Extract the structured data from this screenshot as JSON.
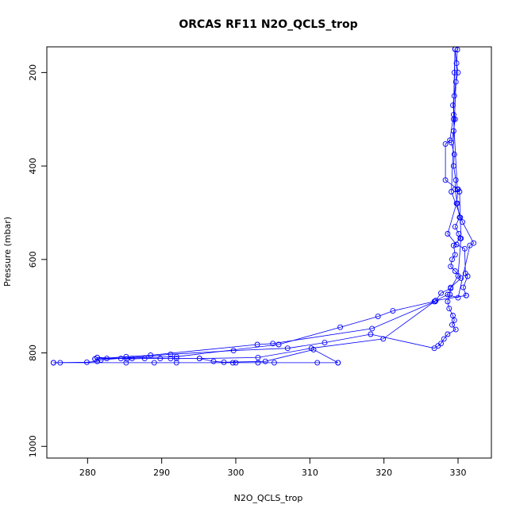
{
  "chart_data": {
    "type": "line",
    "title": "ORCAS RF11 N2O_QCLS_trop",
    "xlabel": "N2O_QCLS_trop",
    "ylabel": "Pressure (mbar)",
    "xlim": [
      274.5,
      334.5
    ],
    "ylim": [
      1025,
      145
    ],
    "y_reversed": true,
    "grid": false,
    "x_ticks": [
      280,
      290,
      300,
      310,
      320,
      330
    ],
    "x_tick_labels": [
      "280",
      "290",
      "300",
      "310",
      "320",
      "330"
    ],
    "y_ticks": [
      200,
      400,
      600,
      800,
      1000
    ],
    "y_tick_labels": [
      "200",
      "400",
      "600",
      "800",
      "1000"
    ],
    "series_color": "#0000ff",
    "series": [
      {
        "x": [
          329.6,
          329.8,
          330.0,
          329.7,
          329.5,
          329.3,
          329.6,
          329.4,
          329.1,
          329.5,
          329.4,
          329.7,
          329.6,
          329.9,
          330.2,
          329.6,
          330.1,
          330.3,
          329.4,
          329.6,
          329.2,
          329.0,
          329.6,
          330.4,
          329.0,
          328.9,
          328.6,
          328.8,
          329.3,
          329.5,
          329.2,
          329.7,
          328.6,
          328.1,
          327.7,
          327.3,
          326.8,
          318.2,
          312.0,
          307.0,
          299.7,
          291.2,
          281.8,
          281.3,
          279.9,
          275.4
        ],
        "y": [
          150,
          180,
          200,
          220,
          250,
          270,
          300,
          325,
          350,
          375,
          400,
          430,
          450,
          480,
          510,
          530,
          545,
          555,
          570,
          590,
          600,
          615,
          625,
          640,
          660,
          675,
          690,
          705,
          720,
          730,
          740,
          750,
          760,
          770,
          780,
          785,
          790,
          760,
          778,
          790,
          795,
          803,
          815,
          818,
          820,
          821
        ]
      },
      {
        "x": [
          275.4,
          276.3,
          285.2,
          289.0,
          292.0,
          299.6,
          300.0,
          303.0,
          305.2,
          311.0,
          313.8
        ],
        "y": [
          821,
          821,
          821,
          821,
          821,
          821,
          821,
          821,
          821,
          821,
          821
        ]
      },
      {
        "x": [
          313.8,
          310.5,
          304.0,
          298.4,
          297.0,
          295.1,
          291.2,
          286.0,
          281.3
        ],
        "y": [
          821,
          793,
          818,
          820,
          818,
          812,
          812,
          812,
          810
        ]
      },
      {
        "x": [
          281.3,
          282.6,
          284.5,
          285.3,
          287.7,
          289.8,
          292.0,
          295.1,
          303.0,
          310.2,
          319.9,
          327.0,
          331.1
        ],
        "y": [
          810,
          812,
          812,
          813,
          812,
          812,
          812,
          812,
          810,
          790,
          770,
          688,
          677
        ]
      },
      {
        "x": [
          331.1,
          330.7,
          331.3,
          331.0,
          330.9,
          329.8,
          328.6,
          329.8,
          330.0,
          328.3,
          328.3,
          328.9,
          329.4,
          329.6
        ],
        "y": [
          677,
          660,
          636,
          630,
          577,
          568,
          545,
          480,
          450,
          430,
          353,
          345,
          290,
          150
        ]
      },
      {
        "x": [
          329.6,
          329.5,
          329.4,
          329.9,
          330.2,
          330.3,
          330.4,
          330.0,
          329.0,
          327.7,
          326.9,
          318.4,
          305.0,
          302.9,
          288.5,
          285.2,
          281.0
        ],
        "y": [
          150,
          200,
          300,
          450,
          455,
          510,
          555,
          635,
          662,
          672,
          690,
          748,
          780,
          782,
          805,
          808,
          813
        ]
      },
      {
        "x": [
          281.0,
          292.0,
          305.8,
          314.1,
          319.2,
          321.2,
          326.8,
          328.6,
          330.0,
          331.6,
          332.1,
          330.6,
          329.1,
          329.9
        ],
        "y": [
          813,
          808,
          782,
          745,
          722,
          710,
          690,
          675,
          682,
          570,
          565,
          520,
          455,
          151
        ]
      }
    ]
  }
}
